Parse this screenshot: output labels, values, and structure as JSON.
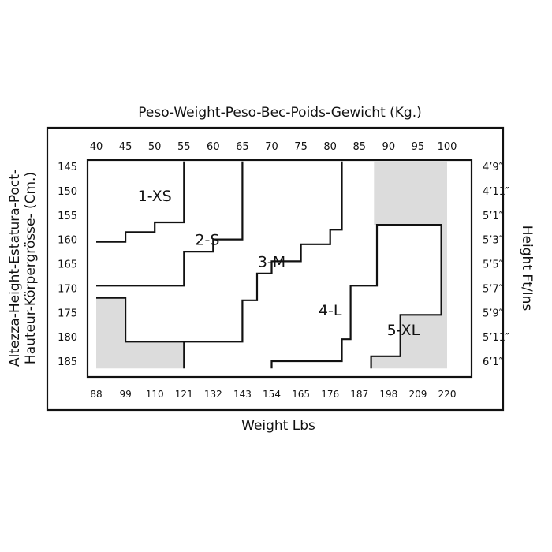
{
  "chart_data": {
    "type": "heatmap",
    "title": "Peso-Weight-Peso-Bec-Poids-Gewicht (Kg.)",
    "xlabel": "Weight Lbs",
    "ylabel_line1": "Altezza-Height-Estatura-Poct-",
    "ylabel_line2": "Hauteur-Körpergrösse- (Cm.)",
    "ylabel_right": "Height Ft/Ins",
    "x_kg_ticks": [
      "40",
      "45",
      "50",
      "55",
      "60",
      "65",
      "70",
      "75",
      "80",
      "85",
      "90",
      "95",
      "100"
    ],
    "x_kg_values": [
      40,
      45,
      50,
      55,
      60,
      65,
      70,
      75,
      80,
      85,
      90,
      95,
      100
    ],
    "x_lbs_ticks": [
      "88",
      "99",
      "110",
      "121",
      "132",
      "143",
      "154",
      "165",
      "176",
      "187",
      "198",
      "209",
      "220"
    ],
    "y_cm_ticks": [
      "145",
      "150",
      "155",
      "160",
      "165",
      "170",
      "175",
      "180",
      "185"
    ],
    "y_cm_values": [
      145,
      150,
      155,
      160,
      165,
      170,
      175,
      180,
      185
    ],
    "y_ftin_ticks": [
      "4’9″",
      "4’11″",
      "5’1″",
      "5’3″",
      "5’5″",
      "5’7″",
      "5’9″",
      "5’11″",
      "6’1″"
    ],
    "kg_range": [
      40,
      100
    ],
    "cm_range": [
      145,
      185
    ],
    "zones": [
      {
        "label": "1-XS",
        "label_kg": 50,
        "label_cm": 151
      },
      {
        "label": "2-S",
        "label_kg": 59,
        "label_cm": 160
      },
      {
        "label": "3-M",
        "label_kg": 70,
        "label_cm": 164.5
      },
      {
        "label": "4-L",
        "label_kg": 80,
        "label_cm": 174.5
      },
      {
        "label": "5-XL",
        "label_kg": 92.5,
        "label_cm": 178.5
      }
    ],
    "boundaries": [
      {
        "name": "xs-s",
        "points": [
          [
            40,
            160.5
          ],
          [
            45,
            160.5
          ],
          [
            45,
            158.5
          ],
          [
            50,
            158.5
          ],
          [
            50,
            156.5
          ],
          [
            55,
            156.5
          ],
          [
            55,
            144
          ]
        ]
      },
      {
        "name": "s-m",
        "points": [
          [
            40,
            169.5
          ],
          [
            55,
            169.5
          ],
          [
            55,
            162.5
          ],
          [
            60,
            162.5
          ],
          [
            60,
            160
          ],
          [
            65,
            160
          ],
          [
            65,
            144
          ]
        ]
      },
      {
        "name": "m-l",
        "points": [
          [
            55,
            186.5
          ],
          [
            55,
            181
          ],
          [
            45,
            181
          ],
          [
            45,
            172
          ],
          [
            40,
            172
          ]
        ]
      },
      {
        "name": "m-l-top",
        "points": [
          [
            55,
            181
          ],
          [
            65,
            181
          ],
          [
            65,
            172.5
          ],
          [
            67.5,
            172.5
          ],
          [
            67.5,
            167
          ],
          [
            70,
            167
          ],
          [
            70,
            164.5
          ],
          [
            75,
            164.5
          ],
          [
            75,
            161
          ],
          [
            80,
            161
          ],
          [
            80,
            158
          ],
          [
            82,
            158
          ],
          [
            82,
            144
          ]
        ]
      },
      {
        "name": "l-xl",
        "points": [
          [
            70,
            186.5
          ],
          [
            70,
            185
          ],
          [
            82,
            185
          ],
          [
            82,
            180.5
          ],
          [
            83.5,
            180.5
          ],
          [
            83.5,
            169.5
          ],
          [
            88,
            169.5
          ],
          [
            88,
            157
          ],
          [
            99,
            157
          ],
          [
            99,
            175.5
          ],
          [
            92,
            175.5
          ],
          [
            92,
            184
          ],
          [
            87,
            184
          ],
          [
            87,
            186.5
          ]
        ]
      }
    ],
    "shaded_regions": [
      {
        "name": "shade-top-right",
        "points": [
          [
            87.5,
            144
          ],
          [
            100,
            144
          ],
          [
            100,
            186.5
          ],
          [
            87,
            186.5
          ],
          [
            87,
            184
          ],
          [
            92,
            184
          ],
          [
            92,
            175.5
          ],
          [
            99,
            175.5
          ],
          [
            99,
            157
          ],
          [
            87.5,
            157
          ]
        ]
      },
      {
        "name": "shade-bottom-left",
        "points": [
          [
            40,
            172
          ],
          [
            45,
            172
          ],
          [
            45,
            181
          ],
          [
            55,
            181
          ],
          [
            55,
            186.5
          ],
          [
            40,
            186.5
          ]
        ]
      }
    ],
    "colors": {
      "shade": "#dcdcdc",
      "line": "#111111",
      "background": "#ffffff"
    }
  }
}
